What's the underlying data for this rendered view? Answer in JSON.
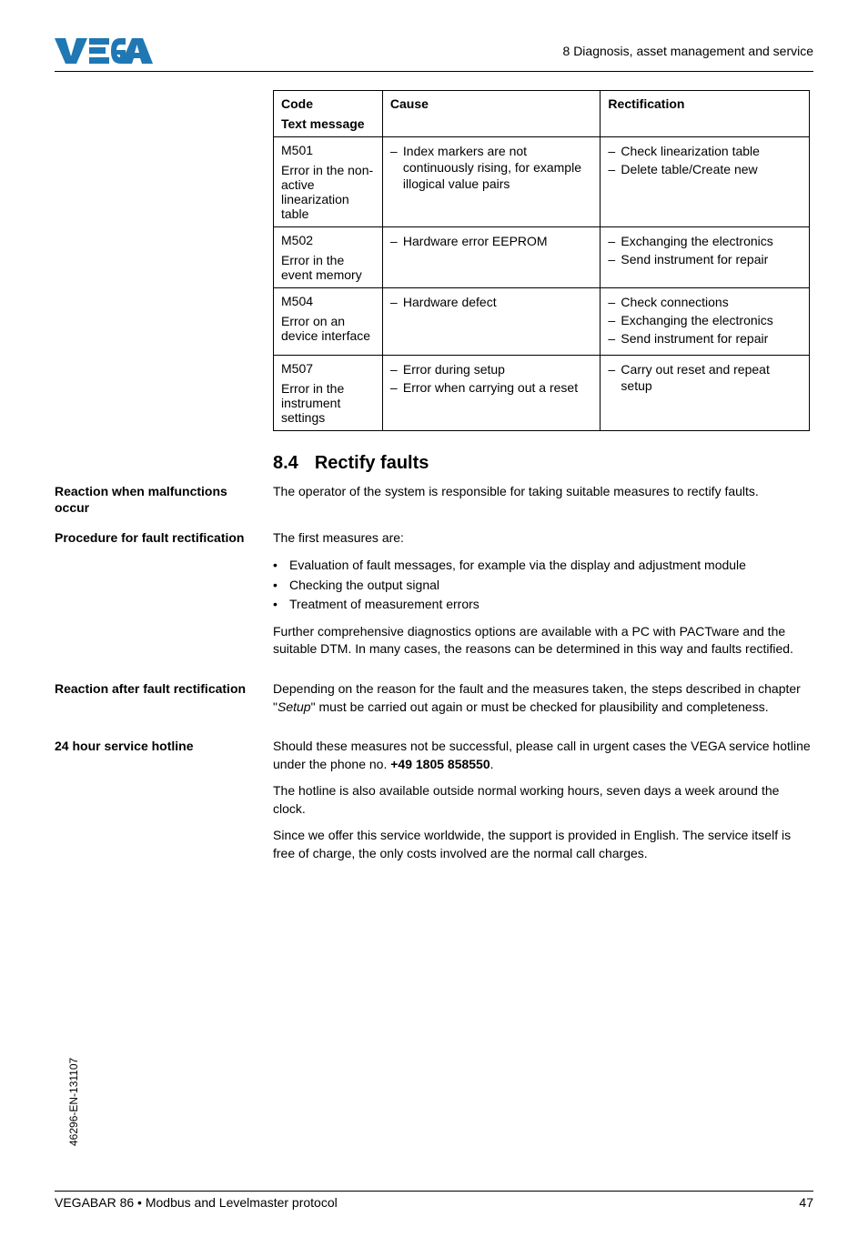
{
  "header": {
    "chapter_text": "8 Diagnosis, asset management and service",
    "logo_color": "#0070c0"
  },
  "table": {
    "headers": {
      "code": "Code",
      "code_sub": "Text message",
      "cause": "Cause",
      "rect": "Rectification"
    },
    "rows": [
      {
        "code": "M501",
        "code_desc": "Error in the non-active linearization table",
        "cause": [
          "Index markers are not continuously rising, for example illogical value pairs"
        ],
        "rect": [
          "Check linearization table",
          "Delete table/Create new"
        ]
      },
      {
        "code": "M502",
        "code_desc": "Error in the event memory",
        "cause": [
          "Hardware error EEPROM"
        ],
        "rect": [
          "Exchanging the electronics",
          "Send instrument for repair"
        ]
      },
      {
        "code": "M504",
        "code_desc": "Error on an device interface",
        "cause": [
          "Hardware defect"
        ],
        "rect": [
          "Check connections",
          "Exchanging the electronics",
          "Send instrument for repair"
        ]
      },
      {
        "code": "M507",
        "code_desc": "Error in the instrument settings",
        "cause": [
          "Error during setup",
          "Error when carrying out a reset"
        ],
        "rect": [
          "Carry out reset and repeat setup"
        ]
      }
    ]
  },
  "section": {
    "number": "8.4",
    "title": "Rectify faults"
  },
  "blocks": [
    {
      "label": "Reaction when malfunctions occur",
      "paras": [
        "The operator of the system is responsible for taking suitable measures to rectify faults."
      ]
    },
    {
      "label": "Procedure for fault rectification",
      "paras": [
        "The first measures are:"
      ],
      "bullets": [
        "Evaluation of fault messages, for example via the display and adjustment module",
        "Checking the output signal",
        "Treatment of measurement errors"
      ],
      "paras_after": [
        "Further comprehensive diagnostics options are available with a PC with PACTware and the suitable DTM. In many cases, the reasons can be determined in this way and faults rectified."
      ]
    },
    {
      "label": "Reaction after fault rectification",
      "paras_html": "Depending on the reason for the fault and the measures taken, the steps described in chapter \"<em class='setup'>Setup</em>\" must be carried out again or must be checked for plausibility and completeness."
    },
    {
      "label": "24 hour service hotline",
      "paras_html_list": [
        "Should these measures not be successful, please call in urgent cases the VEGA service hotline under the phone no. <span class='phone-bold'>+49 1805 858550</span>.",
        "The hotline is also available outside normal working hours, seven days a week around the clock.",
        "Since we offer this service worldwide, the support is provided in English. The service itself is free of charge, the only costs involved are the normal call charges."
      ]
    }
  ],
  "footer": {
    "doc_title": "VEGABAR 86 • Modbus and Levelmaster protocol",
    "page": "47",
    "side_id": "46296-EN-131107"
  }
}
